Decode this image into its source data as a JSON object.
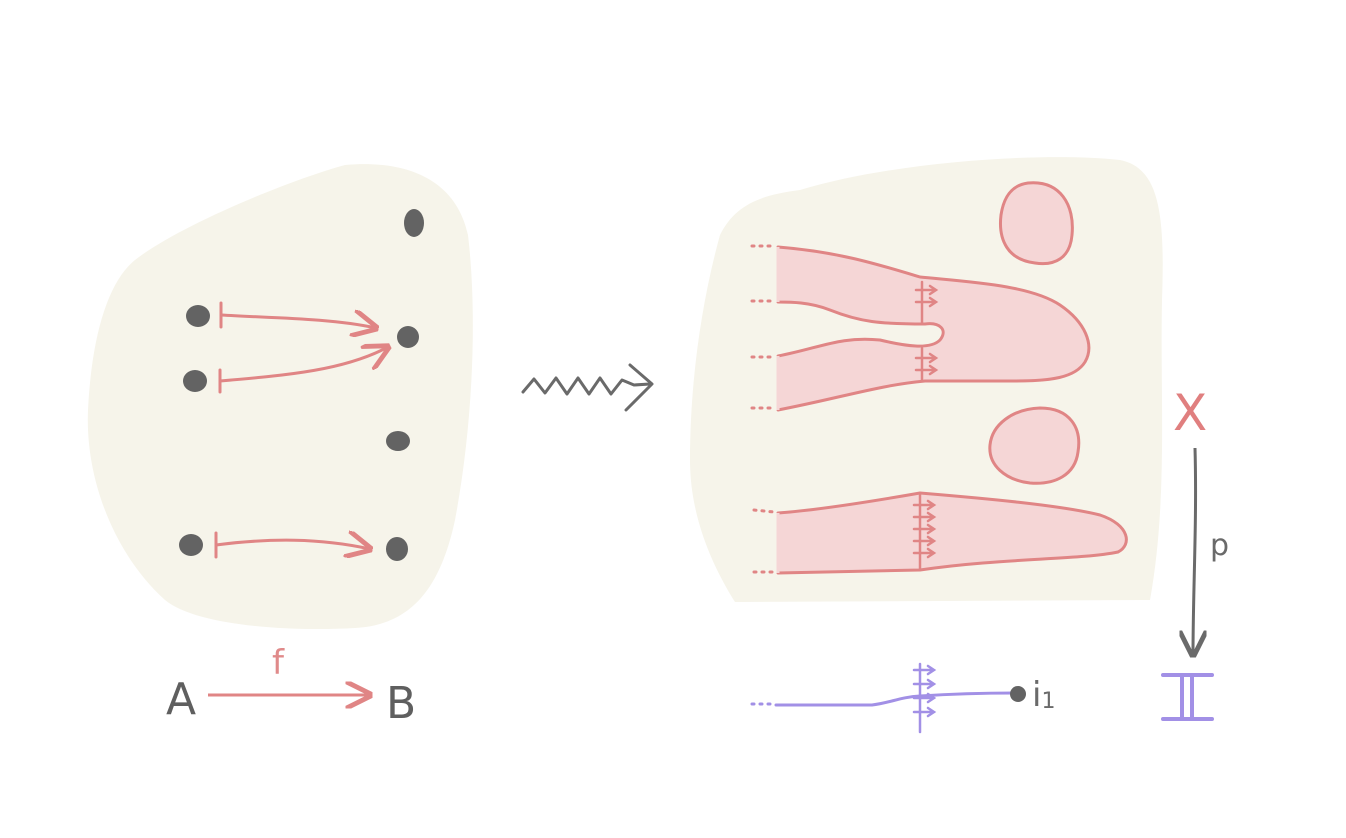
{
  "labels": {
    "source": "A",
    "target": "B",
    "map": "f",
    "total_space": "X",
    "projection": "p",
    "base": "𝕀",
    "endpoint": "i",
    "endpoint_subscript": "1"
  },
  "colors": {
    "background": "#ffffff",
    "blob": "#f6f4ea",
    "red": "#e08585",
    "red_fill": "#f5d6d6",
    "dot": "#636363",
    "gray_arrow": "#6a6a6a",
    "purple": "#a290e6"
  }
}
